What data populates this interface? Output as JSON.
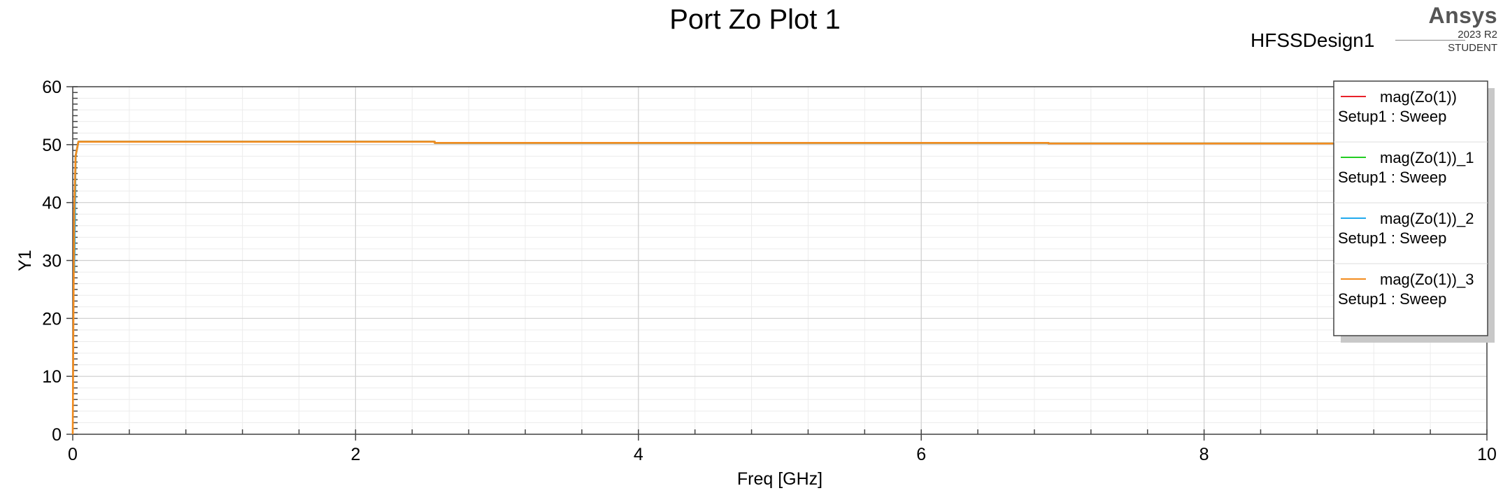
{
  "header": {
    "title": "Port Zo Plot 1",
    "design": "HFSSDesign1",
    "brand": "Ansys",
    "version": "2023 R2",
    "edition": "STUDENT"
  },
  "chart_data": {
    "type": "line",
    "title": "Port Zo Plot 1",
    "xlabel": "Freq [GHz]",
    "ylabel": "Y1",
    "xlim": [
      0,
      10
    ],
    "ylim": [
      0,
      60
    ],
    "xticks": [
      0,
      2,
      4,
      6,
      8,
      10
    ],
    "yticks": [
      0,
      10,
      20,
      30,
      40,
      50,
      60
    ],
    "grid": true,
    "legend_position": "top-right",
    "series": [
      {
        "name": "mag(Zo(1))",
        "setup": "Setup1 : Sweep",
        "color": "#e8212a",
        "x": [
          0.01,
          0.02,
          0.04,
          2.56,
          2.56,
          6.9,
          6.9,
          10
        ],
        "y": [
          28,
          48,
          50.5,
          50.5,
          50.3,
          50.3,
          50.2,
          50.2
        ]
      },
      {
        "name": "mag(Zo(1))_1",
        "setup": "Setup1 : Sweep",
        "color": "#22cc22",
        "x": [
          0.01,
          0.02,
          0.04,
          2.56,
          2.56,
          6.9,
          6.9,
          10
        ],
        "y": [
          28,
          48,
          50.5,
          50.5,
          50.3,
          50.3,
          50.2,
          50.2
        ]
      },
      {
        "name": "mag(Zo(1))_2",
        "setup": "Setup1 : Sweep",
        "color": "#22aaee",
        "x": [
          0.01,
          0.02,
          0.04,
          2.56,
          2.56,
          6.9,
          6.9,
          10
        ],
        "y": [
          28,
          48,
          50.5,
          50.5,
          50.3,
          50.3,
          50.2,
          50.2
        ]
      },
      {
        "name": "mag(Zo(1))_3",
        "setup": "Setup1 : Sweep",
        "color": "#f28c1e",
        "x": [
          0.0,
          0.005,
          0.01,
          0.02,
          0.04,
          2.56,
          2.56,
          6.9,
          6.9,
          10
        ],
        "y": [
          0,
          20,
          38,
          48,
          50.5,
          50.5,
          50.3,
          50.3,
          50.2,
          50.2
        ]
      }
    ]
  }
}
